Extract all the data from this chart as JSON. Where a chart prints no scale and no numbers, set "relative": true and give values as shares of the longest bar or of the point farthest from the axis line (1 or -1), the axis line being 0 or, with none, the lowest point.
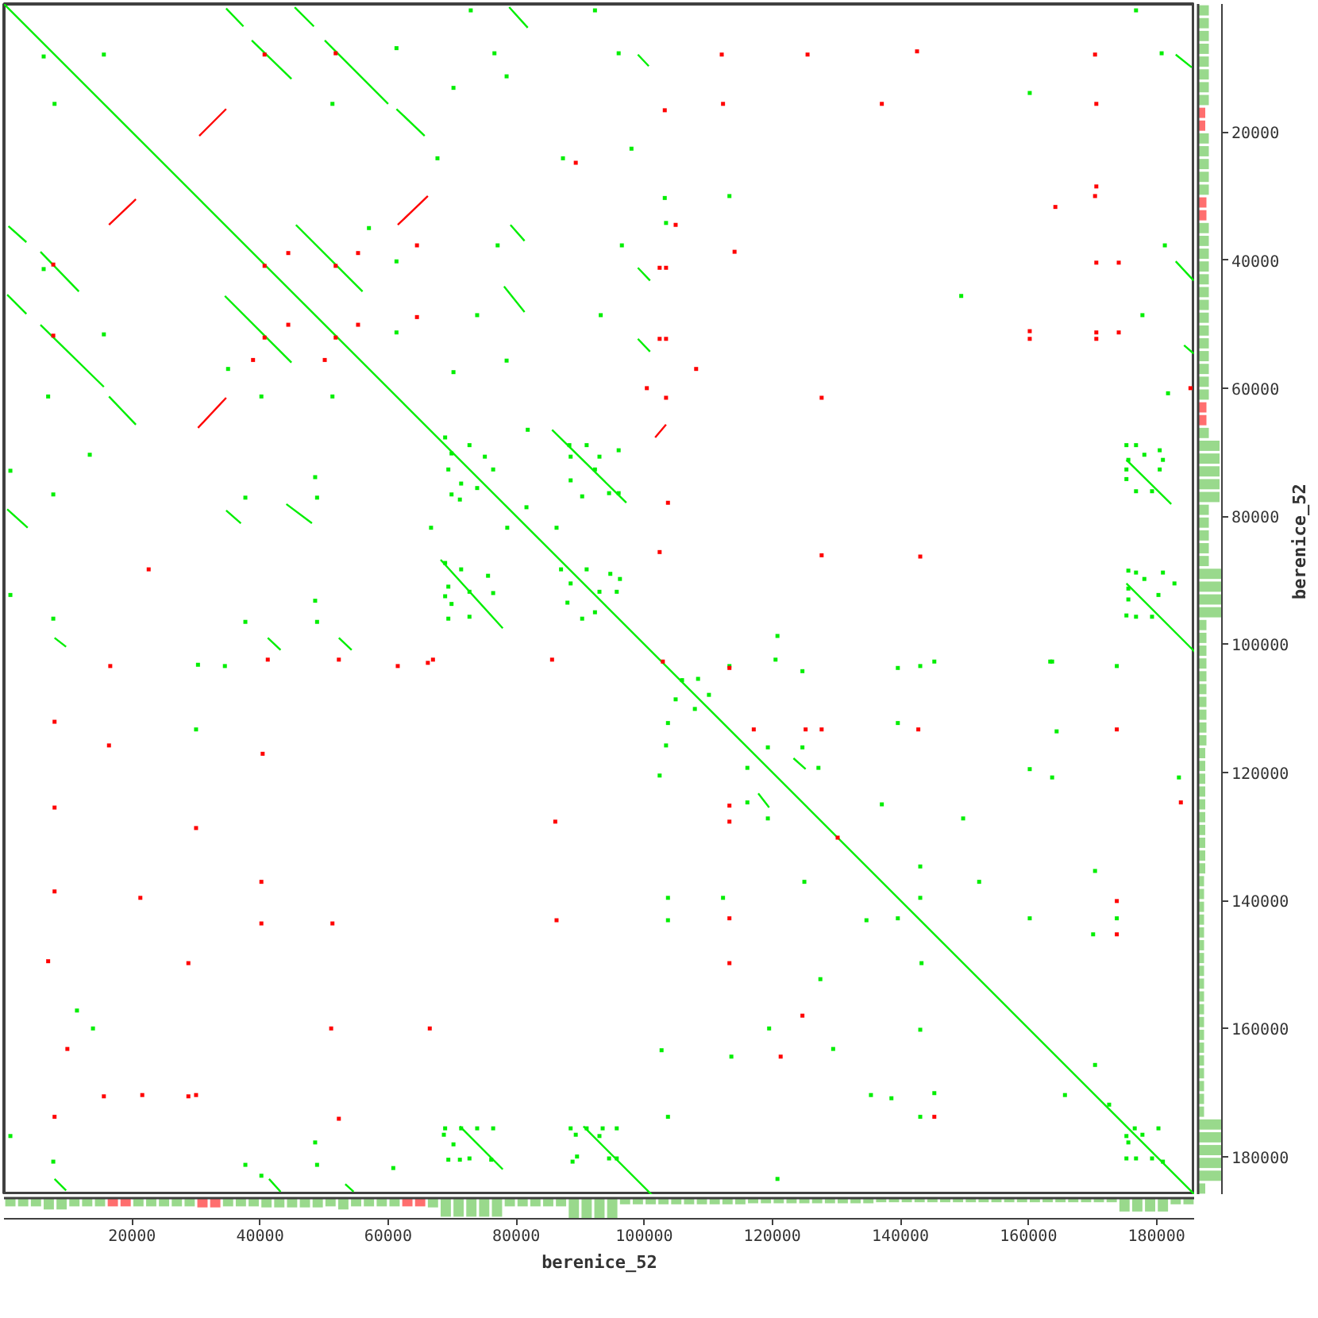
{
  "chart_data": [
    {
      "type": "line",
      "xlim": [
        0,
        186000
      ],
      "ylim": [
        186000,
        0
      ],
      "tick_labels": false,
      "line_style": "solid",
      "series": [
        {
          "color": "#00ee00",
          "x": [
            0,
            186000
          ],
          "values": [
            0,
            186000
          ]
        },
        {
          "color": "#00ee00",
          "x": [
            500,
            3500,
            null,
            5700,
            11700,
            null,
            16400,
            20600,
            null,
            34500,
            44900,
            null,
            45400,
            48400,
            null,
            50100,
            60000,
            null,
            61300,
            65700,
            null,
            68200,
            77900,
            null,
            85600,
            97200,
            null,
            99000,
            100700,
            null,
            117800,
            119500,
            null,
            123300,
            125200,
            null,
            175300,
            182300,
            null,
            183000,
            185500
          ],
          "values": [
            45400,
            48400,
            null,
            38700,
            44900,
            null,
            61300,
            65700,
            null,
            45600,
            56000,
            null,
            500,
            3500,
            null,
            5700,
            15600,
            null,
            16400,
            20600,
            null,
            86800,
            97500,
            null,
            66500,
            77900,
            null,
            7900,
            9700,
            null,
            123300,
            125500,
            null,
            117800,
            119500,
            null,
            71200,
            78100,
            null,
            7900,
            9900
          ]
        },
        {
          "color": "#00ee00",
          "x": [
            500,
            3700,
            null,
            5700,
            15600,
            null,
            34700,
            37400,
            null,
            38700,
            44900,
            null,
            45600,
            56000,
            null,
            71200,
            77900,
            null,
            78100,
            81300,
            null,
            90500,
            101200,
            null,
            175300,
            186000
          ],
          "values": [
            78900,
            81800,
            null,
            50100,
            59800,
            null,
            700,
            3500,
            null,
            5700,
            11700,
            null,
            34500,
            44900,
            null,
            175300,
            182000,
            null,
            44100,
            48100,
            null,
            175300,
            186000,
            null,
            90500,
            101200
          ]
        },
        {
          "color": "#00ee00",
          "x": [
            700,
            3500,
            null,
            7900,
            9700,
            null,
            34700,
            37000,
            null,
            41200,
            43200,
            null,
            44100,
            48100,
            null,
            52300,
            54300,
            null,
            79100,
            81300,
            null,
            99000,
            100900,
            null,
            183000,
            185800
          ],
          "values": [
            34700,
            37200,
            null,
            99000,
            100400,
            null,
            79100,
            81100,
            null,
            99000,
            100900,
            null,
            78100,
            81100,
            null,
            99000,
            100900,
            null,
            34500,
            37000,
            null,
            41200,
            43200,
            null,
            40200,
            43200
          ]
        },
        {
          "color": "#00ee00",
          "x": [
            7900,
            9700,
            null,
            41400,
            43200,
            null,
            53300,
            54600,
            null,
            78900,
            81800,
            null,
            99000,
            100900,
            null,
            184300,
            185800
          ],
          "values": [
            183500,
            185300,
            null,
            183500,
            185500,
            null,
            184300,
            185500,
            null,
            500,
            3700,
            null,
            52300,
            54300,
            null,
            53300,
            54600
          ]
        },
        {
          "color": "#ff0000",
          "x": [
            16400,
            20600,
            null,
            30500,
            34700,
            null,
            61500,
            66200,
            null,
            101700,
            103400
          ],
          "values": [
            34500,
            30500,
            null,
            20600,
            16400,
            null,
            34500,
            30000,
            null,
            67700,
            65700
          ]
        },
        {
          "color": "#ff0000",
          "x": [
            30300,
            34700
          ],
          "values": [
            66200,
            61500
          ]
        },
        {
          "type": "scatter",
          "marker": "square",
          "color": "#00ee00",
          "x": [
            78500,
            78500,
            6200,
            15600,
            7900,
            51300,
            61300,
            67700,
            57000,
            61300,
            6200,
            15600,
            35000,
            61300,
            6900,
            40200,
            51300,
            13400,
            1000,
            7700,
            48600,
            37700,
            48900,
            66700,
            1000,
            48600,
            7700,
            37700,
            48900,
            72900,
            92300,
            76600,
            96000,
            70200,
            87300,
            98000,
            103200,
            113300,
            103400,
            77100,
            96500,
            73900,
            93200,
            70200,
            81800,
            81600,
            78600,
            86300,
            120800,
            176800,
            180800,
            160200,
            181300,
            149500,
            177800,
            181800,
            145300,
            163400,
            30300,
            34500,
            30000,
            11400,
            13900,
            1000,
            7700,
            37700,
            40200,
            48600,
            48900,
            60800,
            113300,
            120500,
            124700,
            108400,
            105900,
            104900,
            110100,
            107900,
            103700,
            103400,
            119300,
            124700,
            116100,
            127200,
            116100,
            119300,
            102400,
            137100,
            125000,
            103700,
            112300,
            103700,
            134700,
            127500,
            119500,
            102700,
            113600,
            129500,
            135400,
            103700,
            120800,
            139600,
            143100,
            163700,
            173800,
            139600,
            164400,
            160200,
            163700,
            183500,
            149800,
            143100,
            170400,
            152300,
            143100,
            139600,
            160200,
            173800,
            170100,
            143300,
            143100,
            170400,
            165700,
            138600,
            145300,
            172600,
            143100,
            68900,
            72700,
            69900,
            75100,
            69400,
            76400,
            71400,
            73900,
            69900,
            71200,
            88300,
            91000,
            96000,
            88500,
            93000,
            88500,
            90300,
            94500,
            96000,
            92300,
            68900,
            71400,
            75600,
            69400,
            72700,
            76400,
            69900,
            69400,
            72700,
            68900,
            87000,
            91000,
            94700,
            96200,
            88500,
            93000,
            95700,
            88000,
            90300,
            92300,
            175300,
            176800,
            180500,
            181000,
            175600,
            178100,
            175300,
            180500,
            175300,
            176800,
            179300,
            175600,
            176800,
            181000,
            178100,
            182800,
            175600,
            180300,
            175600,
            175300,
            176800,
            179300,
            68700,
            68900,
            71400,
            73900,
            76400,
            70200,
            69400,
            71200,
            72700,
            76100,
            88500,
            91000,
            93500,
            95700,
            89300,
            93000,
            89500,
            88800,
            94500,
            95700,
            176600,
            180300,
            175300,
            177800,
            175600,
            175300,
            176800,
            179300,
            181000
          ],
          "values": [
            11300,
            55700,
            8200,
            7900,
            15600,
            15600,
            6900,
            24100,
            35000,
            40200,
            41400,
            51600,
            57000,
            51300,
            61300,
            61300,
            61300,
            70400,
            72900,
            76600,
            73900,
            77100,
            77100,
            81800,
            92300,
            93200,
            96000,
            96500,
            96500,
            1000,
            1000,
            7700,
            7700,
            13100,
            24100,
            22600,
            30300,
            30000,
            34200,
            37700,
            37700,
            48600,
            48600,
            57500,
            66500,
            78600,
            81800,
            81800,
            98700,
            1000,
            7700,
            13900,
            37700,
            45600,
            48600,
            60800,
            102700,
            102700,
            103200,
            103400,
            113300,
            157200,
            160000,
            176800,
            180800,
            181300,
            183000,
            177800,
            181300,
            181800,
            103400,
            102400,
            104200,
            105400,
            105600,
            108600,
            107900,
            110100,
            112300,
            115800,
            116100,
            116100,
            119300,
            119300,
            124700,
            127200,
            120500,
            125000,
            137100,
            139600,
            139600,
            143100,
            143100,
            152300,
            160000,
            163400,
            164400,
            163200,
            170400,
            173800,
            183500,
            103700,
            103400,
            102700,
            103400,
            112300,
            113600,
            119500,
            120800,
            120800,
            127200,
            134700,
            135400,
            137100,
            139600,
            142800,
            142800,
            142800,
            145300,
            149800,
            160200,
            165700,
            170400,
            170900,
            170100,
            171900,
            173800,
            67700,
            68900,
            70200,
            70700,
            72700,
            72700,
            74900,
            75600,
            76600,
            77400,
            68900,
            68900,
            69700,
            70700,
            70700,
            74400,
            76900,
            76400,
            76400,
            72700,
            87300,
            88300,
            89300,
            91000,
            91800,
            92000,
            93700,
            96000,
            95700,
            92500,
            88300,
            88300,
            89000,
            89800,
            90500,
            91800,
            91800,
            93500,
            96000,
            95000,
            68900,
            68900,
            69700,
            71200,
            71200,
            70400,
            72700,
            72700,
            74200,
            76100,
            76100,
            88500,
            88800,
            88800,
            89800,
            90500,
            91300,
            92300,
            93000,
            95500,
            95700,
            95700,
            176600,
            175600,
            175600,
            175600,
            175600,
            178100,
            180500,
            180500,
            180300,
            180500,
            175600,
            175600,
            175600,
            175600,
            176600,
            176800,
            180000,
            180800,
            180300,
            180300,
            175600,
            175600,
            176800,
            176600,
            177800,
            180300,
            180300,
            180300,
            180800
          ]
        },
        {
          "type": "scatter",
          "marker": "square",
          "color": "#ff0000",
          "x": [
            40700,
            51800,
            40700,
            51800,
            40700,
            51800,
            44400,
            55300,
            64500,
            44400,
            55300,
            64500,
            38900,
            50100,
            7700,
            7700,
            22600,
            41200,
            52300,
            67000,
            112100,
            125500,
            103200,
            112300,
            137100,
            89300,
            104900,
            114100,
            102400,
            103400,
            102400,
            103400,
            108100,
            100400,
            103400,
            127700,
            103700,
            102400,
            127700,
            85600,
            102900,
            142600,
            170400,
            170600,
            170600,
            170400,
            164200,
            170600,
            174100,
            160200,
            160200,
            170600,
            170600,
            174100,
            185300,
            143100,
            16600,
            7900,
            16400,
            40400,
            7900,
            30000,
            7900,
            21300,
            40200,
            40200,
            51300,
            6900,
            28800,
            51100,
            66500,
            9900,
            15600,
            21600,
            28800,
            30000,
            7900,
            52300,
            61500,
            66200,
            113300,
            117100,
            125200,
            127700,
            113300,
            113300,
            86100,
            86300,
            113300,
            113300,
            124700,
            121300,
            130200,
            142800,
            173800,
            183800,
            173800,
            173800,
            145300
          ],
          "values": [
            7900,
            7700,
            40900,
            40900,
            52100,
            52100,
            38900,
            38900,
            37700,
            50100,
            50100,
            48900,
            55600,
            55600,
            40700,
            51800,
            88300,
            102400,
            102400,
            102400,
            7900,
            7900,
            16600,
            15600,
            15600,
            24800,
            34500,
            38700,
            41200,
            41200,
            52300,
            52300,
            57000,
            60000,
            61500,
            61500,
            77900,
            85600,
            86100,
            102400,
            102700,
            7400,
            7900,
            15600,
            28500,
            30000,
            31700,
            40400,
            40400,
            51100,
            52300,
            51300,
            52300,
            51300,
            60000,
            86300,
            103400,
            112100,
            115800,
            117100,
            125500,
            128700,
            138600,
            139600,
            137100,
            143600,
            143600,
            149500,
            149800,
            160000,
            160000,
            163200,
            170600,
            170400,
            170600,
            170400,
            173800,
            174100,
            103400,
            102900,
            103700,
            113300,
            113300,
            113300,
            125200,
            127700,
            127700,
            143100,
            142800,
            149800,
            158000,
            164400,
            130200,
            113300,
            113300,
            124700,
            140100,
            145300,
            173800
          ]
        }
      ]
    },
    {
      "type": "bar",
      "orientation": "horizontal",
      "relative": true,
      "x": [
        1000,
        3000,
        5000,
        7000,
        9000,
        11000,
        13000,
        15000,
        17000,
        19000,
        21000,
        23000,
        25000,
        27000,
        29000,
        31000,
        33000,
        35000,
        37000,
        39000,
        41000,
        43000,
        45000,
        47000,
        49000,
        51000,
        53000,
        55000,
        57000,
        59000,
        61000,
        63000,
        65000,
        67000,
        69000,
        71000,
        73000,
        75000,
        77000,
        79000,
        81000,
        83000,
        85000,
        87000,
        89000,
        91000,
        93000,
        95000,
        97000,
        99000,
        101000,
        103000,
        105000,
        107000,
        109000,
        111000,
        113000,
        115000,
        117000,
        119000,
        121000,
        123000,
        125000,
        127000,
        129000,
        131000,
        133000,
        135000,
        137000,
        139000,
        141000,
        143000,
        145000,
        147000,
        149000,
        151000,
        153000,
        155000,
        157000,
        159000,
        161000,
        163000,
        165000,
        167000,
        169000,
        171000,
        173000,
        175000,
        177000,
        179000,
        181000,
        183000,
        185000
      ],
      "values": [
        0.45,
        0.45,
        0.45,
        0.45,
        0.45,
        0.45,
        0.45,
        0.45,
        0.3,
        0.3,
        0.45,
        0.45,
        0.45,
        0.45,
        0.45,
        0.35,
        0.35,
        0.45,
        0.45,
        0.45,
        0.45,
        0.45,
        0.45,
        0.45,
        0.45,
        0.45,
        0.45,
        0.45,
        0.45,
        0.45,
        0.45,
        0.35,
        0.35,
        0.45,
        0.9,
        0.9,
        0.9,
        0.9,
        0.9,
        0.45,
        0.45,
        0.45,
        0.45,
        0.45,
        1,
        1,
        1,
        1,
        0.35,
        0.35,
        0.35,
        0.35,
        0.35,
        0.35,
        0.35,
        0.35,
        0.35,
        0.35,
        0.3,
        0.3,
        0.3,
        0.3,
        0.3,
        0.3,
        0.3,
        0.3,
        0.3,
        0.3,
        0.25,
        0.25,
        0.25,
        0.25,
        0.25,
        0.25,
        0.25,
        0.25,
        0.25,
        0.25,
        0.25,
        0.25,
        0.25,
        0.25,
        0.25,
        0.25,
        0.25,
        0.25,
        0.25,
        1,
        1,
        1,
        1,
        1,
        0.3
      ],
      "colors": [
        "#99d98c",
        "#99d98c",
        "#99d98c",
        "#99d98c",
        "#99d98c",
        "#99d98c",
        "#99d98c",
        "#99d98c",
        "#ff6e6e",
        "#ff6e6e",
        "#99d98c",
        "#99d98c",
        "#99d98c",
        "#99d98c",
        "#99d98c",
        "#ff6e6e",
        "#ff6e6e",
        "#99d98c",
        "#99d98c",
        "#99d98c",
        "#99d98c",
        "#99d98c",
        "#99d98c",
        "#99d98c",
        "#99d98c",
        "#99d98c",
        "#99d98c",
        "#99d98c",
        "#99d98c",
        "#99d98c",
        "#99d98c",
        "#ff6e6e",
        "#ff6e6e",
        "#99d98c",
        "#99d98c",
        "#99d98c",
        "#99d98c",
        "#99d98c",
        "#99d98c",
        "#99d98c",
        "#99d98c",
        "#99d98c",
        "#99d98c",
        "#99d98c",
        "#99d98c",
        "#99d98c",
        "#99d98c",
        "#99d98c",
        "#99d98c",
        "#99d98c",
        "#99d98c",
        "#99d98c",
        "#99d98c",
        "#99d98c",
        "#99d98c",
        "#99d98c",
        "#99d98c",
        "#99d98c",
        "#99d98c",
        "#99d98c",
        "#99d98c",
        "#99d98c",
        "#99d98c",
        "#99d98c",
        "#99d98c",
        "#99d98c",
        "#99d98c",
        "#99d98c",
        "#99d98c",
        "#99d98c",
        "#99d98c",
        "#99d98c",
        "#99d98c",
        "#99d98c",
        "#99d98c",
        "#99d98c",
        "#99d98c",
        "#99d98c",
        "#99d98c",
        "#99d98c",
        "#99d98c",
        "#99d98c",
        "#99d98c",
        "#99d98c",
        "#99d98c",
        "#99d98c",
        "#99d98c",
        "#99d98c",
        "#99d98c",
        "#99d98c",
        "#99d98c",
        "#99d98c",
        "#99d98c"
      ],
      "ylim": [
        186000,
        0
      ],
      "yticks": [
        20000,
        40000,
        60000,
        80000,
        100000,
        120000,
        140000,
        160000,
        180000
      ],
      "ylabel": "berenice_52"
    },
    {
      "type": "bar",
      "relative": true,
      "x": [
        1000,
        3000,
        5000,
        7000,
        9000,
        11000,
        13000,
        15000,
        17000,
        19000,
        21000,
        23000,
        25000,
        27000,
        29000,
        31000,
        33000,
        35000,
        37000,
        39000,
        41000,
        43000,
        45000,
        47000,
        49000,
        51000,
        53000,
        55000,
        57000,
        59000,
        61000,
        63000,
        65000,
        67000,
        69000,
        71000,
        73000,
        75000,
        77000,
        79000,
        81000,
        83000,
        85000,
        87000,
        89000,
        91000,
        93000,
        95000,
        97000,
        99000,
        101000,
        103000,
        105000,
        107000,
        109000,
        111000,
        113000,
        115000,
        117000,
        119000,
        121000,
        123000,
        125000,
        127000,
        129000,
        131000,
        133000,
        135000,
        137000,
        139000,
        141000,
        143000,
        145000,
        147000,
        149000,
        151000,
        153000,
        155000,
        157000,
        159000,
        161000,
        163000,
        165000,
        167000,
        169000,
        171000,
        173000,
        175000,
        177000,
        179000,
        181000,
        183000,
        185000
      ],
      "values": [
        -0.4,
        -0.4,
        -0.4,
        -0.55,
        -0.55,
        -0.4,
        -0.4,
        -0.4,
        -0.4,
        -0.4,
        -0.4,
        -0.4,
        -0.4,
        -0.4,
        -0.4,
        -0.45,
        -0.45,
        -0.4,
        -0.4,
        -0.4,
        -0.45,
        -0.45,
        -0.45,
        -0.45,
        -0.45,
        -0.4,
        -0.55,
        -0.4,
        -0.4,
        -0.4,
        -0.4,
        -0.4,
        -0.4,
        -0.45,
        -0.9,
        -0.9,
        -0.9,
        -0.9,
        -0.9,
        -0.4,
        -0.4,
        -0.4,
        -0.4,
        -0.4,
        -1,
        -1,
        -1,
        -1,
        -0.3,
        -0.3,
        -0.3,
        -0.3,
        -0.3,
        -0.3,
        -0.3,
        -0.3,
        -0.3,
        -0.3,
        -0.25,
        -0.25,
        -0.25,
        -0.25,
        -0.25,
        -0.25,
        -0.25,
        -0.25,
        -0.25,
        -0.25,
        -0.2,
        -0.2,
        -0.2,
        -0.2,
        -0.2,
        -0.2,
        -0.2,
        -0.2,
        -0.2,
        -0.2,
        -0.2,
        -0.2,
        -0.2,
        -0.2,
        -0.2,
        -0.2,
        -0.2,
        -0.2,
        -0.2,
        -0.65,
        -0.65,
        -0.65,
        -0.65,
        -0.3,
        -0.3
      ],
      "colors": [
        "#99d98c",
        "#99d98c",
        "#99d98c",
        "#99d98c",
        "#99d98c",
        "#99d98c",
        "#99d98c",
        "#99d98c",
        "#ff6e6e",
        "#ff6e6e",
        "#99d98c",
        "#99d98c",
        "#99d98c",
        "#99d98c",
        "#99d98c",
        "#ff6e6e",
        "#ff6e6e",
        "#99d98c",
        "#99d98c",
        "#99d98c",
        "#99d98c",
        "#99d98c",
        "#99d98c",
        "#99d98c",
        "#99d98c",
        "#99d98c",
        "#99d98c",
        "#99d98c",
        "#99d98c",
        "#99d98c",
        "#99d98c",
        "#ff6e6e",
        "#ff6e6e",
        "#99d98c",
        "#99d98c",
        "#99d98c",
        "#99d98c",
        "#99d98c",
        "#99d98c",
        "#99d98c",
        "#99d98c",
        "#99d98c",
        "#99d98c",
        "#99d98c",
        "#99d98c",
        "#99d98c",
        "#99d98c",
        "#99d98c",
        "#99d98c",
        "#99d98c",
        "#99d98c",
        "#99d98c",
        "#99d98c",
        "#99d98c",
        "#99d98c",
        "#99d98c",
        "#99d98c",
        "#99d98c",
        "#99d98c",
        "#99d98c",
        "#99d98c",
        "#99d98c",
        "#99d98c",
        "#99d98c",
        "#99d98c",
        "#99d98c",
        "#99d98c",
        "#99d98c",
        "#99d98c",
        "#99d98c",
        "#99d98c",
        "#99d98c",
        "#99d98c",
        "#99d98c",
        "#99d98c",
        "#99d98c",
        "#99d98c",
        "#99d98c",
        "#99d98c",
        "#99d98c",
        "#99d98c",
        "#99d98c",
        "#99d98c",
        "#99d98c",
        "#99d98c",
        "#99d98c",
        "#99d98c",
        "#99d98c",
        "#99d98c",
        "#99d98c",
        "#99d98c",
        "#99d98c",
        "#99d98c"
      ],
      "xlim": [
        0,
        186000
      ],
      "xticks": [
        20000,
        40000,
        60000,
        80000,
        100000,
        120000,
        140000,
        160000,
        180000
      ],
      "xlabel": "berenice_52"
    }
  ]
}
